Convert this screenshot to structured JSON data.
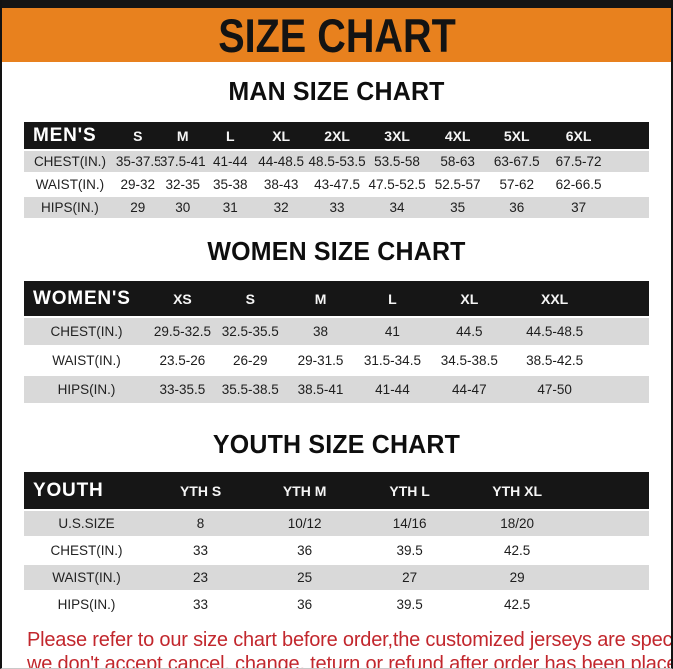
{
  "page": {
    "title": "SIZE CHART",
    "note_line1": "Please refer to our size chart before order,the customized jerseys are special products,",
    "note_line2": "we don't accept cancel, change, teturn or refund after order has been placed!"
  },
  "colors": {
    "banner_orange": "#E8811E",
    "top_bar_black": "#141414",
    "table_header_black": "#161616",
    "row_gray": "#D9D9D9",
    "note_red": "#C2272D"
  },
  "sections": [
    {
      "heading": "MAN SIZE CHART",
      "table": {
        "label": "MEN'S",
        "sizes": [
          "S",
          "M",
          "L",
          "XL",
          "2XL",
          "3XL",
          "4XL",
          "5XL",
          "6XL"
        ],
        "rows": [
          {
            "label": "CHEST(IN.)",
            "values": [
              "35-37.5",
              "37.5-41",
              "41-44",
              "44-48.5",
              "48.5-53.5",
              "53.5-58",
              "58-63",
              "63-67.5",
              "67.5-72"
            ]
          },
          {
            "label": "WAIST(IN.)",
            "values": [
              "29-32",
              "32-35",
              "35-38",
              "38-43",
              "43-47.5",
              "47.5-52.5",
              "52.5-57",
              "57-62",
              "62-66.5"
            ]
          },
          {
            "label": "HIPS(IN.)",
            "values": [
              "29",
              "30",
              "31",
              "32",
              "33",
              "34",
              "35",
              "36",
              "37"
            ]
          }
        ]
      }
    },
    {
      "heading": "WOMEN SIZE CHART",
      "table": {
        "label": "WOMEN'S",
        "sizes": [
          "XS",
          "S",
          "M",
          "L",
          "XL",
          "XXL"
        ],
        "rows": [
          {
            "label": "CHEST(IN.)",
            "values": [
              "29.5-32.5",
              "32.5-35.5",
              "38",
              "41",
              "44.5",
              "44.5-48.5"
            ]
          },
          {
            "label": "WAIST(IN.)",
            "values": [
              "23.5-26",
              "26-29",
              "29-31.5",
              "31.5-34.5",
              "34.5-38.5",
              "38.5-42.5"
            ]
          },
          {
            "label": "HIPS(IN.)",
            "values": [
              "33-35.5",
              "35.5-38.5",
              "38.5-41",
              "41-44",
              "44-47",
              "47-50"
            ]
          }
        ]
      }
    },
    {
      "heading": "YOUTH SIZE CHART",
      "table": {
        "label": "YOUTH",
        "sizes": [
          "YTH S",
          "YTH M",
          "YTH L",
          "YTH XL"
        ],
        "rows": [
          {
            "label": "U.S.SIZE",
            "values": [
              "8",
              "10/12",
              "14/16",
              "18/20"
            ]
          },
          {
            "label": "CHEST(IN.)",
            "values": [
              "33",
              "36",
              "39.5",
              "42.5"
            ]
          },
          {
            "label": "WAIST(IN.)",
            "values": [
              "23",
              "25",
              "27",
              "29"
            ]
          },
          {
            "label": "HIPS(IN.)",
            "values": [
              "33",
              "36",
              "39.5",
              "42.5"
            ]
          }
        ]
      }
    }
  ]
}
